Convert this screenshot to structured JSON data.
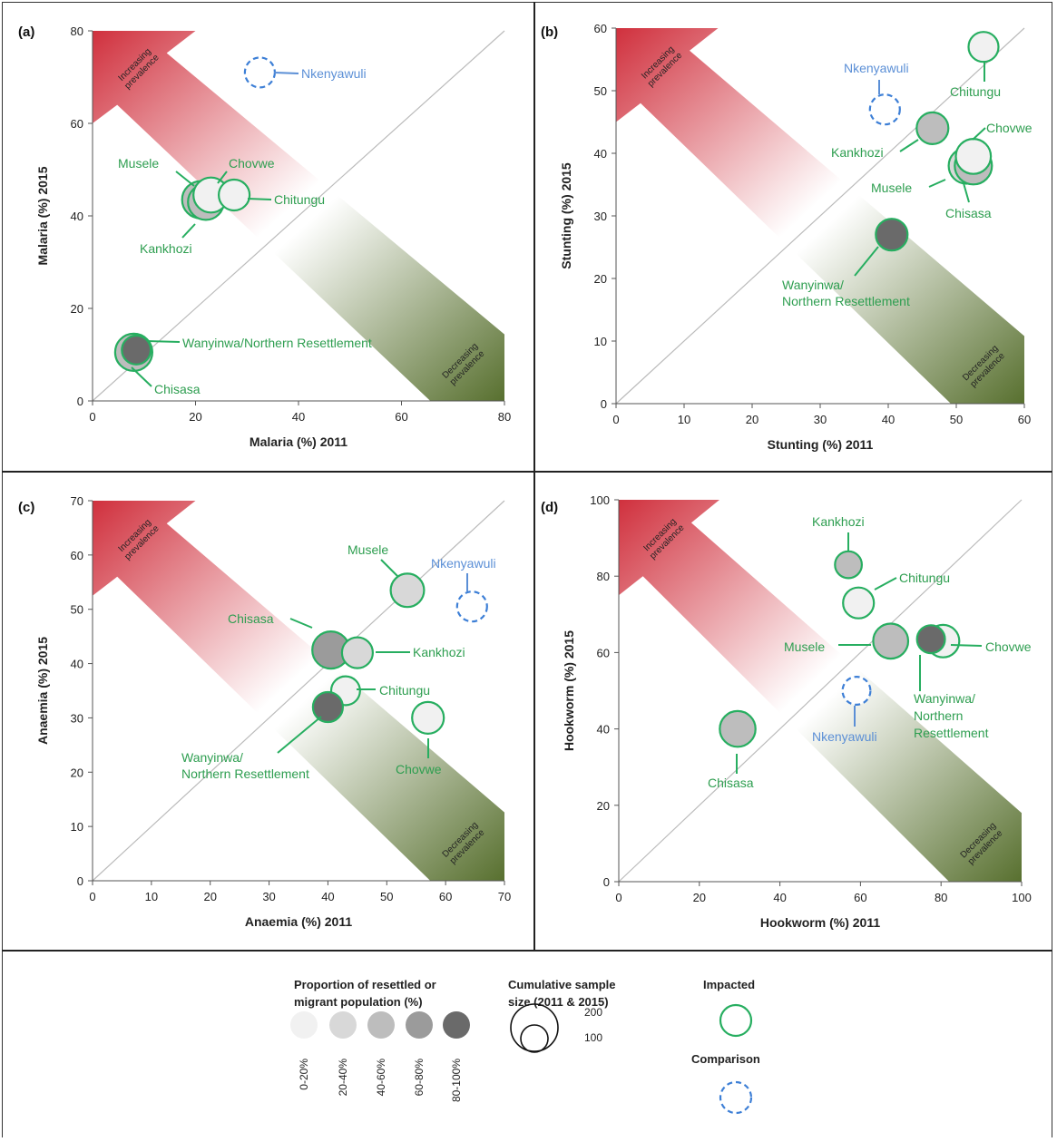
{
  "colors": {
    "impacted": "#27ae60",
    "comparison": "#3d7fd6",
    "label_impacted": "#2e9e50",
    "label_comparison": "#5b8fd6",
    "fill_levels": [
      "#f1f1f1",
      "#d8d8d8",
      "#bdbdbd",
      "#9b9b9b",
      "#6a6a6a"
    ],
    "increase_arrow": "#d0303d",
    "decrease_arrow": "#58702f"
  },
  "arrow_text": {
    "increasing": [
      "Increasing",
      "prevalence"
    ],
    "decreasing": [
      "Decreasing",
      "prevalence"
    ]
  },
  "chart_data": [
    {
      "type": "scatter",
      "panel": "(a)",
      "xlabel": "Malaria (%) 2011",
      "ylabel": "Malaria (%) 2015",
      "xlim": [
        0,
        80
      ],
      "ylim": [
        0,
        80
      ],
      "xticks": [
        0,
        20,
        40,
        60,
        80
      ],
      "yticks": [
        0,
        20,
        40,
        60,
        80
      ],
      "points": [
        {
          "name": "Nkenyawuli",
          "x": 32.5,
          "y": 71,
          "group": "comparison",
          "fill": 0,
          "size": 130
        },
        {
          "name": "Musele",
          "x": 21,
          "y": 43.5,
          "group": "impacted",
          "fill": 2,
          "size": 220
        },
        {
          "name": "Kankhozi",
          "x": 22,
          "y": 43,
          "group": "impacted",
          "fill": 2,
          "size": 200
        },
        {
          "name": "Chovwe",
          "x": 23,
          "y": 44.5,
          "group": "impacted",
          "fill": 0,
          "size": 190
        },
        {
          "name": "Chitungu",
          "x": 27.5,
          "y": 44.5,
          "group": "impacted",
          "fill": 0,
          "size": 140
        },
        {
          "name": "Chisasa",
          "x": 8,
          "y": 10.5,
          "group": "impacted",
          "fill": 2,
          "size": 220
        },
        {
          "name": "Wanyinwa/Northern Resettlement",
          "x": 8.5,
          "y": 11,
          "group": "impacted",
          "fill": 4,
          "size": 120
        }
      ],
      "labels": [
        {
          "text": [
            "Nkenyawuli"
          ],
          "group": "comparison"
        },
        {
          "text": [
            "Musele"
          ],
          "group": "impacted"
        },
        {
          "text": [
            "Chovwe"
          ],
          "group": "impacted"
        },
        {
          "text": [
            "Chitungu"
          ],
          "group": "impacted"
        },
        {
          "text": [
            "Kankhozi"
          ],
          "group": "impacted"
        },
        {
          "text": [
            "Wanyinwa/Northern Resettlement"
          ],
          "group": "impacted"
        },
        {
          "text": [
            "Chisasa"
          ],
          "group": "impacted"
        }
      ]
    },
    {
      "type": "scatter",
      "panel": "(b)",
      "xlabel": "Stunting (%) 2011",
      "ylabel": "Stunting (%) 2015",
      "xlim": [
        0,
        60
      ],
      "ylim": [
        0,
        60
      ],
      "xticks": [
        0,
        10,
        20,
        30,
        40,
        50,
        60
      ],
      "yticks": [
        0,
        10,
        20,
        30,
        40,
        50,
        60
      ],
      "points": [
        {
          "name": "Chitungu",
          "x": 54,
          "y": 57,
          "group": "impacted",
          "fill": 0,
          "size": 130
        },
        {
          "name": "Nkenyawuli",
          "x": 39.5,
          "y": 47,
          "group": "comparison",
          "fill": 0,
          "size": 130
        },
        {
          "name": "Kankhozi",
          "x": 46.5,
          "y": 44,
          "group": "impacted",
          "fill": 2,
          "size": 150
        },
        {
          "name": "Musele",
          "x": 51.5,
          "y": 38,
          "group": "impacted",
          "fill": 1,
          "size": 200
        },
        {
          "name": "Chisasa",
          "x": 52.5,
          "y": 38,
          "group": "impacted",
          "fill": 2,
          "size": 220
        },
        {
          "name": "Chovwe",
          "x": 52.5,
          "y": 39.5,
          "group": "impacted",
          "fill": 0,
          "size": 190
        },
        {
          "name": "Wanyinwa/Northern Resettlement",
          "x": 40.5,
          "y": 27,
          "group": "impacted",
          "fill": 4,
          "size": 150
        }
      ],
      "labels": [
        {
          "text": [
            "Nkenyawuli"
          ],
          "group": "comparison"
        },
        {
          "text": [
            "Chitungu"
          ],
          "group": "impacted"
        },
        {
          "text": [
            "Chovwe"
          ],
          "group": "impacted"
        },
        {
          "text": [
            "Kankhozi"
          ],
          "group": "impacted"
        },
        {
          "text": [
            "Musele"
          ],
          "group": "impacted"
        },
        {
          "text": [
            "Chisasa"
          ],
          "group": "impacted"
        },
        {
          "text": [
            "Wanyinwa/",
            "Northern Resettlement"
          ],
          "group": "impacted"
        }
      ]
    },
    {
      "type": "scatter",
      "panel": "(c)",
      "xlabel": "Anaemia (%) 2011",
      "ylabel": "Anaemia (%) 2015",
      "xlim": [
        0,
        70
      ],
      "ylim": [
        0,
        70
      ],
      "xticks": [
        0,
        10,
        20,
        30,
        40,
        50,
        60,
        70
      ],
      "yticks": [
        0,
        10,
        20,
        30,
        40,
        50,
        60,
        70
      ],
      "points": [
        {
          "name": "Musele",
          "x": 53.5,
          "y": 53.5,
          "group": "impacted",
          "fill": 1,
          "size": 170
        },
        {
          "name": "Nkenyawuli",
          "x": 64.5,
          "y": 50.5,
          "group": "comparison",
          "fill": 0,
          "size": 130
        },
        {
          "name": "Chisasa",
          "x": 40.5,
          "y": 42.5,
          "group": "impacted",
          "fill": 3,
          "size": 220
        },
        {
          "name": "Kankhozi",
          "x": 45,
          "y": 42,
          "group": "impacted",
          "fill": 1,
          "size": 140
        },
        {
          "name": "Chitungu",
          "x": 43,
          "y": 35,
          "group": "impacted",
          "fill": 0,
          "size": 120
        },
        {
          "name": "Wanyinwa/Northern Resettlement",
          "x": 40,
          "y": 32,
          "group": "impacted",
          "fill": 4,
          "size": 130
        },
        {
          "name": "Chovwe",
          "x": 57,
          "y": 30,
          "group": "impacted",
          "fill": 0,
          "size": 150
        }
      ],
      "labels": [
        {
          "text": [
            "Musele"
          ],
          "group": "impacted"
        },
        {
          "text": [
            "Nkenyawuli"
          ],
          "group": "comparison"
        },
        {
          "text": [
            "Chisasa"
          ],
          "group": "impacted"
        },
        {
          "text": [
            "Kankhozi"
          ],
          "group": "impacted"
        },
        {
          "text": [
            "Chitungu"
          ],
          "group": "impacted"
        },
        {
          "text": [
            "Wanyinwa/",
            "Northern Resettlement"
          ],
          "group": "impacted"
        },
        {
          "text": [
            "Chovwe"
          ],
          "group": "impacted"
        }
      ]
    },
    {
      "type": "scatter",
      "panel": "(d)",
      "xlabel": "Hookworm  (%) 2011",
      "ylabel": "Hookworm  (%) 2015",
      "xlim": [
        0,
        100
      ],
      "ylim": [
        0,
        100
      ],
      "xticks": [
        0,
        20,
        40,
        60,
        80,
        100
      ],
      "yticks": [
        0,
        20,
        40,
        60,
        80,
        100
      ],
      "points": [
        {
          "name": "Kankhozi",
          "x": 57,
          "y": 83,
          "group": "impacted",
          "fill": 2,
          "size": 100
        },
        {
          "name": "Chitungu",
          "x": 59.5,
          "y": 73,
          "group": "impacted",
          "fill": 0,
          "size": 140
        },
        {
          "name": "Musele",
          "x": 67.5,
          "y": 63,
          "group": "impacted",
          "fill": 2,
          "size": 190
        },
        {
          "name": "Chovwe",
          "x": 80.5,
          "y": 63,
          "group": "impacted",
          "fill": 0,
          "size": 160
        },
        {
          "name": "Wanyinwa/Northern Resettlement",
          "x": 77.5,
          "y": 63.5,
          "group": "impacted",
          "fill": 4,
          "size": 110
        },
        {
          "name": "Nkenyawuli",
          "x": 59,
          "y": 50,
          "group": "comparison",
          "fill": 0,
          "size": 110
        },
        {
          "name": "Chisasa",
          "x": 29.5,
          "y": 40,
          "group": "impacted",
          "fill": 2,
          "size": 200
        }
      ],
      "labels": [
        {
          "text": [
            "Kankhozi"
          ],
          "group": "impacted"
        },
        {
          "text": [
            "Chitungu"
          ],
          "group": "impacted"
        },
        {
          "text": [
            "Musele"
          ],
          "group": "impacted"
        },
        {
          "text": [
            "Chovwe"
          ],
          "group": "impacted"
        },
        {
          "text": [
            "Wanyinwa/",
            "Northern",
            "Resettlement"
          ],
          "group": "impacted"
        },
        {
          "text": [
            "Nkenyawuli"
          ],
          "group": "comparison"
        },
        {
          "text": [
            "Chisasa"
          ],
          "group": "impacted"
        }
      ]
    }
  ],
  "legend": {
    "proportion_title": [
      "Proportion of resettled or",
      "migrant population (%)"
    ],
    "proportion_levels": [
      "0-20%",
      "20-40%",
      "40-60%",
      "60-80%",
      "80-100%"
    ],
    "size_title": [
      "Cumulative sample",
      "size (2011 & 2015)"
    ],
    "size_values": [
      "200",
      "100"
    ],
    "impacted_label": "Impacted",
    "comparison_label": "Comparison"
  }
}
